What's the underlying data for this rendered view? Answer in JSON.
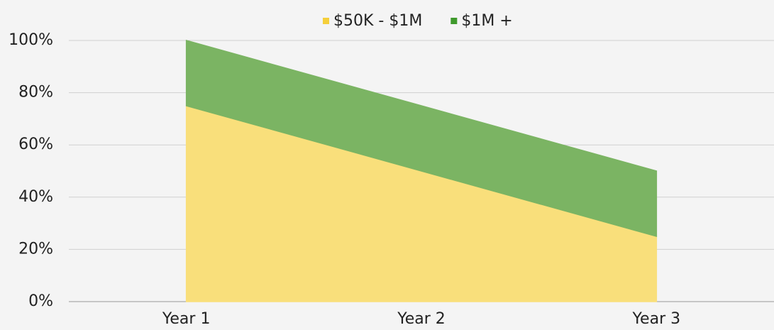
{
  "chart_data": {
    "type": "stacked_area",
    "categories": [
      "Year 1",
      "Year 2",
      "Year 3"
    ],
    "series": [
      {
        "name": "$50K - $1M",
        "color": "#f9df7b",
        "values": [
          75,
          50,
          25
        ]
      },
      {
        "name": "$1M +",
        "color": "#7bb463",
        "values": [
          25,
          25,
          25
        ]
      }
    ],
    "ylim": [
      0,
      100
    ],
    "yticks": [
      {
        "value": 0,
        "label": "0%"
      },
      {
        "value": 20,
        "label": "20%"
      },
      {
        "value": 40,
        "label": "40%"
      },
      {
        "value": 60,
        "label": "60%"
      },
      {
        "value": 80,
        "label": "80%"
      },
      {
        "value": 100,
        "label": "100%"
      }
    ],
    "grid": true,
    "legend": "top"
  }
}
